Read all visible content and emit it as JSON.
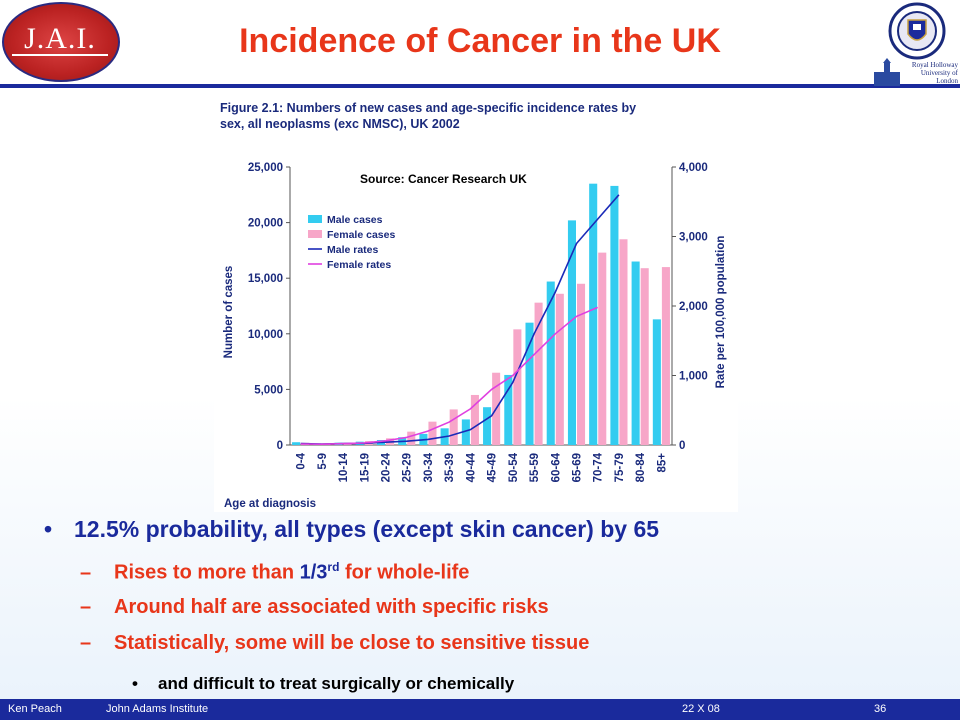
{
  "slide": {
    "title": "Incidence of Cancer in the UK",
    "logo_text": "J.A.I.",
    "crest_text": "Royal Holloway University of London"
  },
  "chart_data": {
    "type": "bar",
    "title": "Figure 2.1: Numbers of new cases and age-specific incidence rates by sex, all neoplasms (exc NMSC), UK 2002",
    "title_lines": [
      "Figure 2.1: Numbers of new cases and age-specific incidence rates by",
      "sex, all neoplasms (exc NMSC), UK 2002"
    ],
    "annotation": "Source: Cancer Research UK",
    "xlabel": "Age at diagnosis",
    "ylabel": "Number of cases",
    "y2label": "Rate per 100,000 population",
    "categories": [
      "0-4",
      "5-9",
      "10-14",
      "15-19",
      "20-24",
      "25-29",
      "30-34",
      "35-39",
      "40-44",
      "45-49",
      "50-54",
      "55-59",
      "60-64",
      "65-69",
      "70-74",
      "75-79",
      "80-84",
      "85+"
    ],
    "ylim": [
      0,
      25000
    ],
    "y2lim": [
      0,
      4000
    ],
    "yticks": [
      "0",
      "5,000",
      "10,000",
      "15,000",
      "20,000",
      "25,000"
    ],
    "yticks_values": [
      0,
      5000,
      10000,
      15000,
      20000,
      25000
    ],
    "y2ticks": [
      "0",
      "1,000",
      "2,000",
      "3,000",
      "4,000"
    ],
    "y2ticks_values": [
      0,
      1000,
      2000,
      3000,
      4000
    ],
    "legend_position": "top-left",
    "series": [
      {
        "name": "Male cases",
        "type": "bar",
        "axis": "left",
        "color": "#33ccf0",
        "values": [
          250,
          150,
          200,
          300,
          450,
          700,
          1000,
          1500,
          2300,
          3400,
          6300,
          11000,
          14700,
          20200,
          23500,
          23300,
          16500,
          11300
        ]
      },
      {
        "name": "Female cases",
        "type": "bar",
        "axis": "left",
        "color": "#f7a6c8",
        "values": [
          200,
          150,
          200,
          350,
          600,
          1200,
          2100,
          3200,
          4500,
          6500,
          10400,
          12800,
          13600,
          14500,
          17300,
          18500,
          15900,
          16000
        ]
      },
      {
        "name": "Male rates",
        "type": "line",
        "axis": "right",
        "color": "#1a2ab8",
        "values": [
          20,
          15,
          20,
          25,
          40,
          55,
          80,
          130,
          220,
          420,
          900,
          1600,
          2200,
          2900,
          3250,
          3600,
          null,
          null
        ]
      },
      {
        "name": "Female rates",
        "type": "line",
        "axis": "right",
        "color": "#e040e0",
        "values": [
          15,
          12,
          18,
          30,
          60,
          110,
          200,
          330,
          520,
          800,
          1000,
          1300,
          1600,
          1850,
          1980,
          null,
          null,
          null
        ]
      }
    ]
  },
  "bullets": {
    "main": "12.5% probability, all types (except skin cancer) by 65",
    "sub1_pre": "Rises to more than ",
    "sub1_hl": "1/3",
    "sub1_sup": "rd",
    "sub1_post": " for whole-life",
    "sub2": "Around half are associated with specific risks",
    "sub3": "Statistically, some will be close to sensitive tissue",
    "sub3_detail": "and difficult to treat surgically or chemically",
    "bullet_glyph": "•",
    "dash_glyph": "–"
  },
  "footer": {
    "author": "Ken Peach",
    "institute": "John Adams Institute",
    "date": "22 X  08",
    "page": "36"
  }
}
